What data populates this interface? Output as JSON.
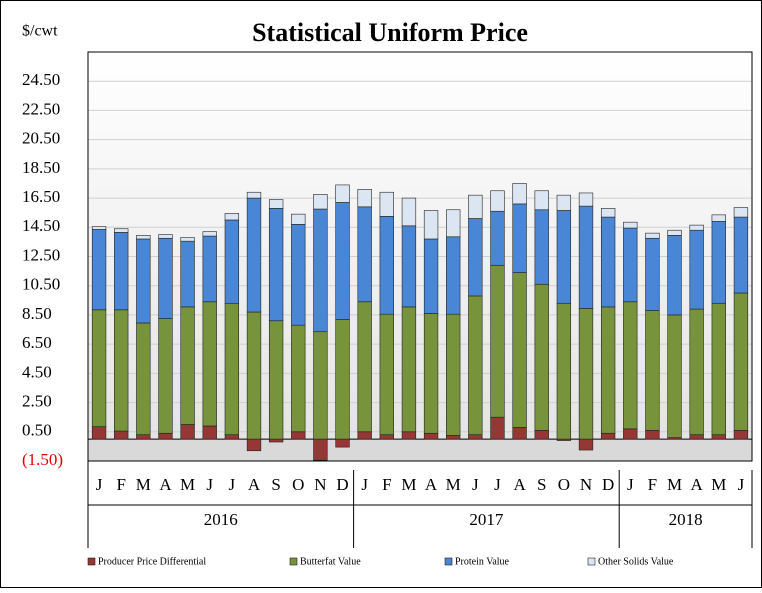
{
  "chart_data": {
    "type": "stacked_bar",
    "title": "Statistical Uniform Price",
    "y_label": "$/cwt",
    "categories": [
      "J",
      "F",
      "M",
      "A",
      "M",
      "J",
      "J",
      "A",
      "S",
      "O",
      "N",
      "D",
      "J",
      "F",
      "M",
      "A",
      "M",
      "J",
      "J",
      "A",
      "S",
      "O",
      "N",
      "D",
      "J",
      "F",
      "M",
      "A",
      "M",
      "J"
    ],
    "groups": [
      {
        "label": "2016",
        "count": 12
      },
      {
        "label": "2017",
        "count": 12
      },
      {
        "label": "2018",
        "count": 6
      }
    ],
    "series": [
      {
        "name": "Producer Price Differential",
        "color": "#953735",
        "values": [
          0.85,
          0.55,
          0.3,
          0.4,
          1.0,
          0.9,
          0.3,
          -0.8,
          -0.2,
          0.5,
          -1.45,
          -0.55,
          0.5,
          0.3,
          0.5,
          0.4,
          0.25,
          0.3,
          1.5,
          0.8,
          0.6,
          -0.1,
          -0.75,
          0.4,
          0.7,
          0.6,
          0.1,
          0.3,
          0.3,
          0.6
        ]
      },
      {
        "name": "Butterfat Value",
        "color": "#77933c",
        "values": [
          8.0,
          8.3,
          7.65,
          7.85,
          8.05,
          8.5,
          9.0,
          8.7,
          8.1,
          7.3,
          7.35,
          8.2,
          8.9,
          8.25,
          8.55,
          8.2,
          8.3,
          9.5,
          10.4,
          10.6,
          10.0,
          9.3,
          8.95,
          8.65,
          8.7,
          8.2,
          8.4,
          8.6,
          9.0,
          9.4
        ]
      },
      {
        "name": "Protein Value",
        "color": "#4a86d6",
        "values": [
          5.5,
          5.3,
          5.75,
          5.5,
          4.5,
          4.5,
          5.7,
          7.8,
          7.7,
          6.9,
          8.4,
          8.0,
          6.5,
          6.7,
          5.55,
          5.1,
          5.3,
          5.3,
          3.7,
          4.7,
          5.1,
          6.35,
          7.0,
          6.15,
          5.05,
          4.95,
          5.45,
          5.4,
          5.6,
          5.2
        ]
      },
      {
        "name": "Other Solids Value",
        "color": "#dce6f2",
        "values": [
          0.2,
          0.25,
          0.25,
          0.25,
          0.25,
          0.3,
          0.45,
          0.4,
          0.6,
          0.7,
          1.0,
          1.2,
          1.2,
          1.65,
          1.9,
          1.95,
          1.85,
          1.6,
          1.4,
          1.4,
          1.3,
          1.05,
          0.9,
          0.6,
          0.4,
          0.35,
          0.35,
          0.35,
          0.45,
          0.65
        ]
      }
    ],
    "ylim": [
      -1.5,
      26.5
    ],
    "yticks": [
      {
        "value": -1.5,
        "label": "(1.50)"
      },
      {
        "value": 0.5,
        "label": "0.50"
      },
      {
        "value": 2.5,
        "label": "2.50"
      },
      {
        "value": 4.5,
        "label": "4.50"
      },
      {
        "value": 6.5,
        "label": "6.50"
      },
      {
        "value": 8.5,
        "label": "8.50"
      },
      {
        "value": 10.5,
        "label": "10.50"
      },
      {
        "value": 12.5,
        "label": "12.50"
      },
      {
        "value": 14.5,
        "label": "14.50"
      },
      {
        "value": 16.5,
        "label": "16.50"
      },
      {
        "value": 18.5,
        "label": "18.50"
      },
      {
        "value": 20.5,
        "label": "20.50"
      },
      {
        "value": 22.5,
        "label": "22.50"
      },
      {
        "value": 24.5,
        "label": "24.50"
      }
    ],
    "negative_tick_color": "#e00000",
    "grid": true,
    "legend": "bottom"
  }
}
